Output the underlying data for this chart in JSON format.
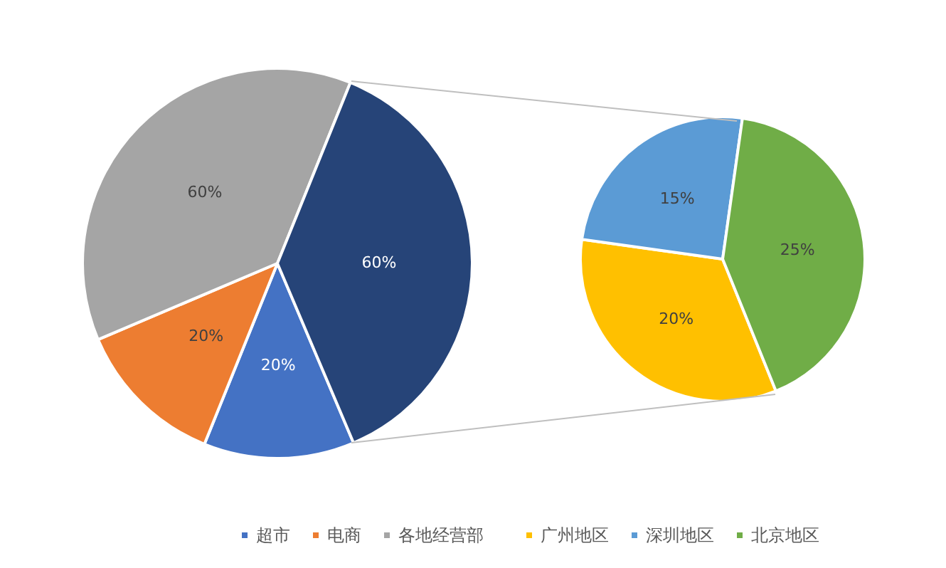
{
  "chart_data": [
    {
      "type": "pie",
      "categories": [
        "超市",
        "电商",
        "各地经营部",
        null
      ],
      "values": [
        20,
        20,
        60,
        60
      ],
      "colors": [
        "#4472c4",
        "#ed7d31",
        "#a5a5a5",
        "#264478"
      ],
      "value_labels": [
        "20%",
        "20%",
        "60%",
        "60%"
      ],
      "legend": "bottom"
    },
    {
      "type": "pie",
      "categories": [
        "广州地区",
        "深圳地区",
        "北京地区"
      ],
      "values": [
        20,
        15,
        25
      ],
      "colors": [
        "#ffc000",
        "#5b9bd5",
        "#70ad47"
      ],
      "value_labels": [
        "20%",
        "15%",
        "25%"
      ],
      "legend": "bottom"
    }
  ]
}
